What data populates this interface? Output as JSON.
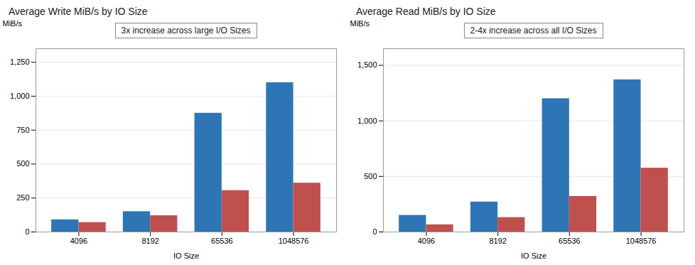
{
  "chart_data": [
    {
      "type": "bar",
      "title": "Average Write MiB/s by IO Size",
      "xlabel": "IO Size",
      "ylabel": "MiB/s",
      "categories": [
        "4096",
        "8192",
        "65536",
        "1048576"
      ],
      "series": [
        {
          "color": "#2E75B6",
          "values": [
            90,
            150,
            875,
            1100
          ]
        },
        {
          "color": "#C0504D",
          "values": [
            70,
            120,
            305,
            360
          ]
        }
      ],
      "ylim": [
        0,
        1350
      ],
      "yticks": [
        0,
        250,
        500,
        750,
        1000,
        1250
      ],
      "grid": true,
      "annotations": [
        "3x increase across large I/O Sizes"
      ]
    },
    {
      "type": "bar",
      "title": "Average Read MiB/s by IO Size",
      "xlabel": "IO Size",
      "ylabel": "MiB/s",
      "categories": [
        "4096",
        "8192",
        "65536",
        "1048576"
      ],
      "series": [
        {
          "color": "#2E75B6",
          "values": [
            150,
            270,
            1200,
            1370
          ]
        },
        {
          "color": "#C0504D",
          "values": [
            65,
            130,
            320,
            575
          ]
        }
      ],
      "ylim": [
        0,
        1650
      ],
      "yticks": [
        0,
        500,
        1000,
        1500
      ],
      "grid": true,
      "annotations": [
        "2-4x increase across all I/O Sizes"
      ]
    }
  ]
}
